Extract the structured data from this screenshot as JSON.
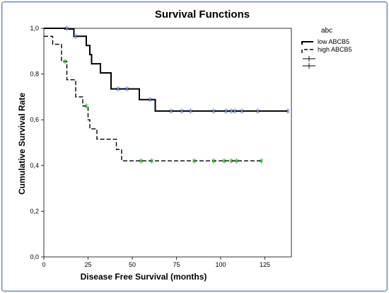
{
  "chart_data": {
    "type": "line",
    "title": "Survival Functions",
    "xlabel": "Disease Free Survival (months)",
    "ylabel": "Cumulative Survival Rate",
    "xlim": [
      0,
      140
    ],
    "ylim": [
      0.0,
      1.0
    ],
    "x_ticks": [
      "0",
      "25",
      "50",
      "75",
      "100",
      "125"
    ],
    "y_ticks": [
      "0,0",
      "0,2",
      "0,4",
      "0,6",
      "0,8",
      "1,0"
    ],
    "x_tick_values": [
      0,
      25,
      50,
      75,
      100,
      125
    ],
    "y_tick_values": [
      0.0,
      0.2,
      0.4,
      0.6,
      0.8,
      1.0
    ],
    "legend": {
      "title": "abc",
      "placement": "right",
      "entries": [
        "low ABCB5",
        "high ABCB5",
        "",
        ""
      ]
    },
    "series": [
      {
        "name": "low ABCB5",
        "style": "solid",
        "color": "#000000",
        "censor_color": "#6b7fbf",
        "steps": [
          [
            0,
            1.0
          ],
          [
            12,
            1.0
          ],
          [
            12,
            0.997
          ],
          [
            17,
            0.997
          ],
          [
            17,
            0.965
          ],
          [
            24,
            0.965
          ],
          [
            24,
            0.925
          ],
          [
            26,
            0.925
          ],
          [
            26,
            0.885
          ],
          [
            27,
            0.885
          ],
          [
            27,
            0.845
          ],
          [
            32,
            0.845
          ],
          [
            32,
            0.805
          ],
          [
            38,
            0.805
          ],
          [
            38,
            0.735
          ],
          [
            54,
            0.735
          ],
          [
            54,
            0.688
          ],
          [
            63,
            0.688
          ],
          [
            63,
            0.638
          ],
          [
            138,
            0.638
          ]
        ],
        "censored": [
          [
            13,
            1.0
          ],
          [
            18,
            0.965
          ],
          [
            42,
            0.735
          ],
          [
            47,
            0.735
          ],
          [
            60,
            0.688
          ],
          [
            72,
            0.638
          ],
          [
            78,
            0.638
          ],
          [
            83,
            0.638
          ],
          [
            96,
            0.638
          ],
          [
            103,
            0.638
          ],
          [
            106,
            0.638
          ],
          [
            108,
            0.638
          ],
          [
            112,
            0.638
          ],
          [
            121,
            0.638
          ],
          [
            138,
            0.638
          ]
        ]
      },
      {
        "name": "high ABCB5",
        "style": "dashed",
        "color": "#000000",
        "censor_color": "#3fae3f",
        "steps": [
          [
            0,
            0.965
          ],
          [
            5,
            0.965
          ],
          [
            5,
            0.93
          ],
          [
            10,
            0.93
          ],
          [
            10,
            0.855
          ],
          [
            13,
            0.855
          ],
          [
            13,
            0.775
          ],
          [
            18,
            0.775
          ],
          [
            18,
            0.7
          ],
          [
            22,
            0.7
          ],
          [
            22,
            0.66
          ],
          [
            25,
            0.66
          ],
          [
            25,
            0.6
          ],
          [
            26,
            0.6
          ],
          [
            26,
            0.56
          ],
          [
            30,
            0.56
          ],
          [
            30,
            0.515
          ],
          [
            41,
            0.515
          ],
          [
            41,
            0.47
          ],
          [
            44,
            0.47
          ],
          [
            44,
            0.42
          ],
          [
            123,
            0.42
          ]
        ],
        "censored": [
          [
            12,
            0.855
          ],
          [
            24,
            0.66
          ],
          [
            55,
            0.42
          ],
          [
            61,
            0.42
          ],
          [
            85,
            0.42
          ],
          [
            96,
            0.42
          ],
          [
            102,
            0.42
          ],
          [
            106,
            0.42
          ],
          [
            109,
            0.42
          ],
          [
            123,
            0.42
          ]
        ]
      }
    ]
  }
}
